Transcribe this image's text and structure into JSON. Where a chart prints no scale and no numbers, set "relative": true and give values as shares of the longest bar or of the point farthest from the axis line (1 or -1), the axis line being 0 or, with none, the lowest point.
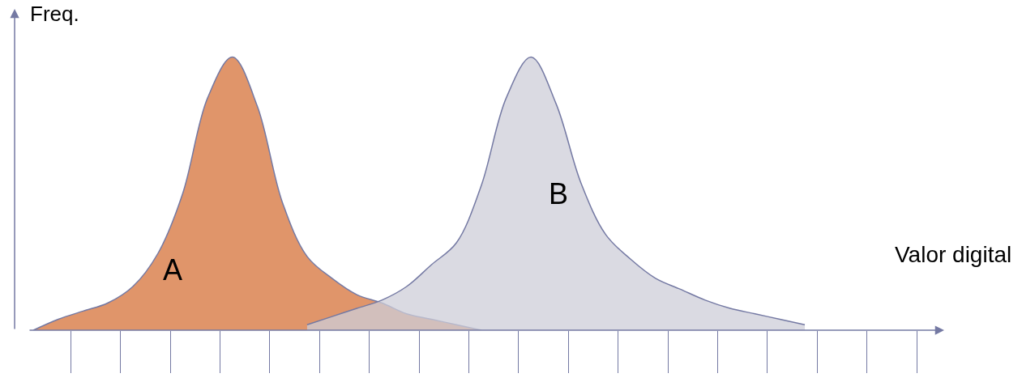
{
  "chart_data": {
    "type": "area",
    "xlabel": "Valor digital",
    "ylabel": "Freq.",
    "relative": true,
    "legend": false,
    "categories": [
      null,
      null,
      null,
      null,
      null,
      null,
      null,
      null,
      null,
      null,
      null,
      null,
      null,
      null,
      null,
      null,
      null,
      null,
      null,
      null,
      null,
      null,
      null,
      null,
      null,
      null,
      null,
      null,
      null,
      null,
      null,
      null,
      null,
      null
    ],
    "series": [
      {
        "name": "A",
        "color": "#e0956a",
        "values": [
          null,
          0,
          0.04,
          0.07,
          0.1,
          0.16,
          0.28,
          0.5,
          0.85,
          1,
          0.82,
          0.47,
          0.27,
          0.19,
          0.13,
          0.1,
          0.06,
          0.04,
          0.02,
          0,
          null,
          null,
          null,
          null,
          null,
          null,
          null,
          null,
          null,
          null,
          null,
          null,
          null,
          null
        ]
      },
      {
        "name": "B",
        "color": "#cdced8",
        "values": [
          null,
          null,
          null,
          null,
          null,
          null,
          null,
          null,
          null,
          null,
          null,
          null,
          0.02,
          0.05,
          0.08,
          0.11,
          0.16,
          0.24,
          0.32,
          0.53,
          0.85,
          1,
          0.83,
          0.54,
          0.35,
          0.26,
          0.19,
          0.15,
          0.11,
          0.08,
          0.06,
          0.04,
          0.02,
          null
        ]
      }
    ]
  }
}
